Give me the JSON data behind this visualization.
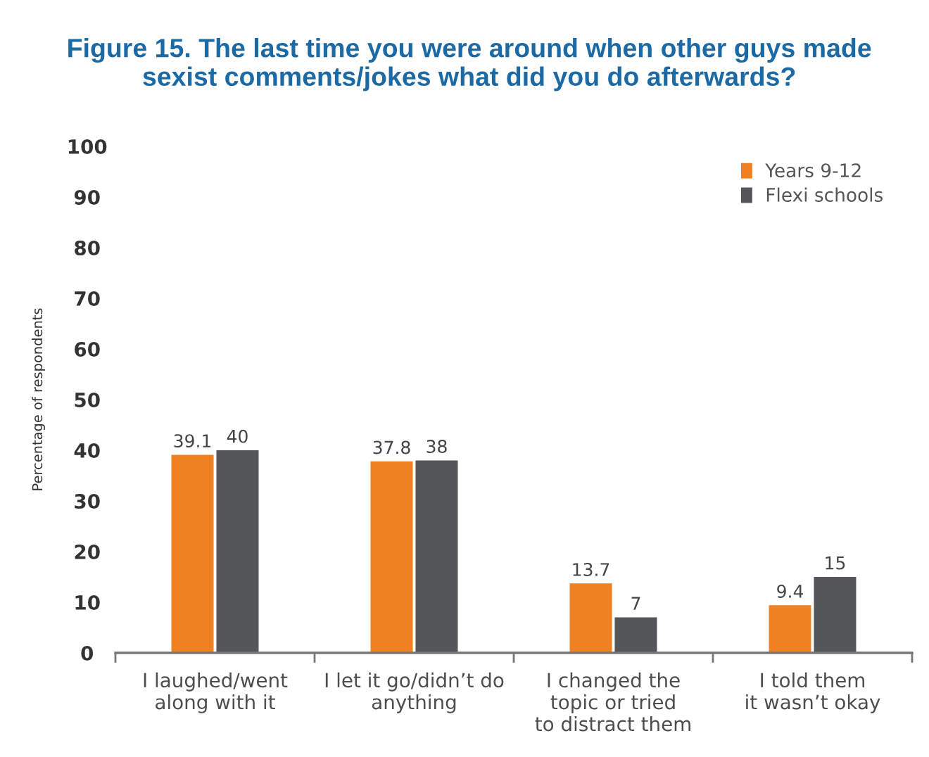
{
  "chart_data": {
    "type": "bar",
    "title": "Figure 15. The last time you were around when other guys made\nsexist comments/jokes what did you do afterwards?",
    "ylabel": "Percentage of respondents",
    "categories": [
      "I laughed/went\nalong with it",
      "I let it go/didn’t do\nanything",
      "I changed the\ntopic or tried\nto distract them",
      "I told them\nit wasn’t okay"
    ],
    "series": [
      {
        "name": "Years 9-12",
        "color": "#f08122",
        "values": [
          39.1,
          37.8,
          13.7,
          9.4
        ]
      },
      {
        "name": "Flexi schools",
        "color": "#55565a",
        "values": [
          40,
          38,
          7,
          15
        ]
      }
    ],
    "ylim": [
      0,
      100
    ],
    "yticks": [
      0,
      10,
      20,
      30,
      40,
      50,
      60,
      70,
      80,
      90,
      100
    ],
    "grid": false,
    "legend": "top right",
    "data_labels": true
  }
}
